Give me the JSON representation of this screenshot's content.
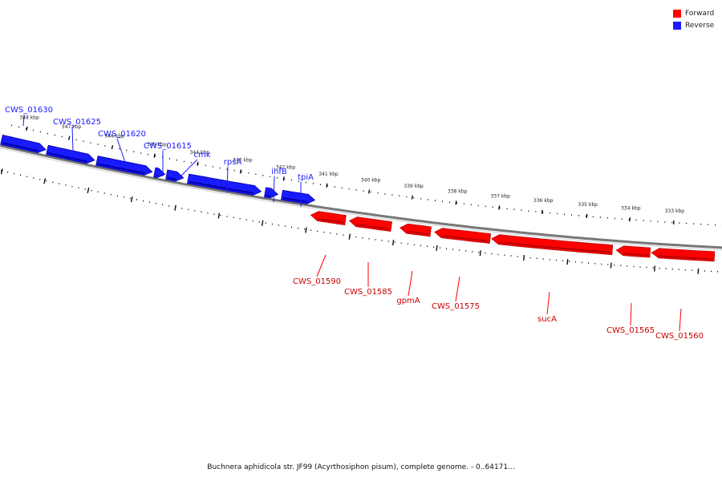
{
  "legend": {
    "items": [
      {
        "label": "Forward",
        "color": "#ff0000"
      },
      {
        "label": "Reverse",
        "color": "#1a1aff"
      }
    ]
  },
  "caption": "Buchnera aphidicola str. JF99 (Acyrthosiphon pisum), complete genome. - 0..64171...",
  "colors": {
    "forward": "#ff0000",
    "reverse": "#1a1aff",
    "backbone": "#777777"
  },
  "ticks": [
    "348 kbp",
    "347 kbp",
    "346 kbp",
    "345 kbp",
    "344 kbp",
    "343 kbp",
    "342 kbp",
    "341 kbp",
    "340 kbp",
    "339 kbp",
    "338 kbp",
    "337 kbp",
    "336 kbp",
    "335 kbp",
    "334 kbp",
    "333 kbp"
  ],
  "genes": {
    "reverse": [
      "CWS_01630",
      "CWS_01625",
      "CWS_01620",
      "CWS_01615",
      "cmk",
      "rpsA",
      "ihfB",
      "tpiA"
    ],
    "forward": [
      "CWS_01590",
      "CWS_01585",
      "gpmA",
      "CWS_01575",
      "sucA",
      "CWS_01565",
      "CWS_01560"
    ]
  }
}
